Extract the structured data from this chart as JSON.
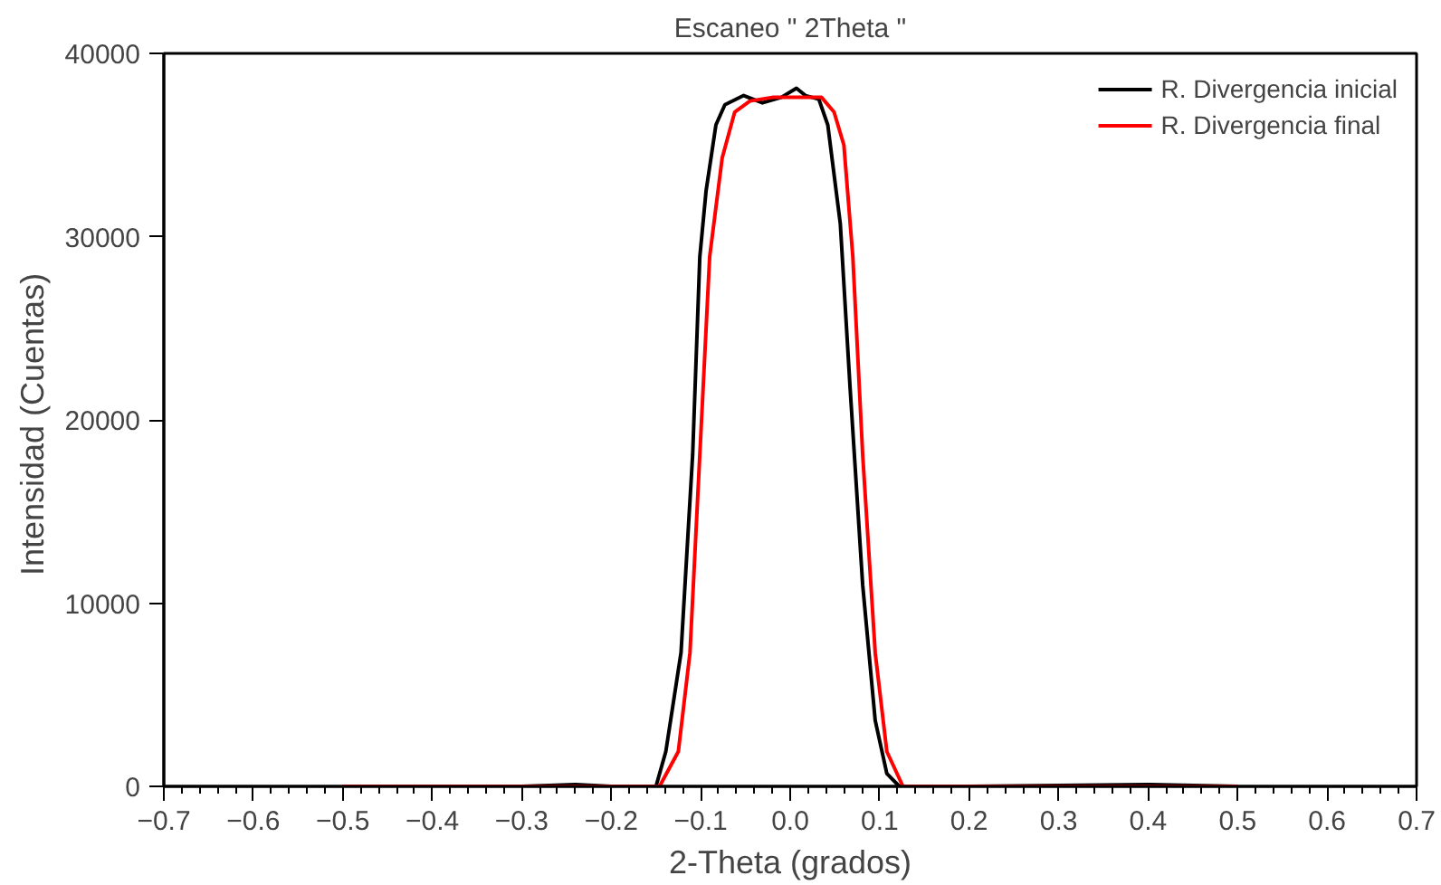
{
  "chart_data": {
    "type": "line",
    "title": "Escaneo \" 2Theta \"",
    "xlabel": "2-Theta (grados)",
    "ylabel": "Intensidad  (Cuentas)",
    "xlim": [
      -0.7,
      0.7
    ],
    "xticks": [
      -0.7,
      -0.6,
      -0.5,
      -0.4,
      -0.3,
      -0.2,
      -0.1,
      {
        "value": 0,
        "label": "0.0"
      },
      0.1,
      0.2,
      0.3,
      0.4,
      0.5,
      0.6,
      0.7
    ],
    "ylim": [
      0,
      40000
    ],
    "yticks": [
      0,
      10000,
      20000,
      30000,
      40000
    ],
    "grid": false,
    "legend": "top right",
    "marker": "none",
    "line_style": "solid",
    "series": [
      {
        "name": "R. Divergencia inicial",
        "color": "#000000",
        "x": [
          -0.5,
          -0.3,
          -0.24,
          -0.2,
          -0.15,
          -0.139,
          -0.122,
          -0.109,
          -0.101,
          -0.094,
          -0.083,
          -0.073,
          -0.052,
          -0.031,
          -0.01,
          0.007,
          0.017,
          0.032,
          0.042,
          0.056,
          0.067,
          0.081,
          0.095,
          0.108,
          0.122,
          0.2,
          0.4,
          0.5
        ],
        "values": [
          0,
          0,
          100,
          0,
          0,
          1900,
          7300,
          18100,
          28900,
          32500,
          36100,
          37200,
          37700,
          37300,
          37600,
          38100,
          37700,
          37500,
          36100,
          30700,
          21700,
          11000,
          3600,
          700,
          0,
          0,
          100,
          0
        ]
      },
      {
        "name": "R. Divergencia final",
        "color": "#ff0000",
        "x": [
          -0.5,
          -0.3,
          -0.146,
          -0.125,
          -0.112,
          -0.101,
          -0.09,
          -0.076,
          -0.062,
          -0.045,
          -0.02,
          0.0,
          0.02,
          0.035,
          0.049,
          0.06,
          0.07,
          0.081,
          0.095,
          0.108,
          0.126,
          0.2,
          0.5
        ],
        "values": [
          0,
          0,
          0,
          1900,
          7300,
          18100,
          28900,
          34300,
          36800,
          37400,
          37600,
          37600,
          37600,
          37600,
          36800,
          35000,
          28900,
          18100,
          7300,
          1900,
          0,
          0,
          0
        ]
      }
    ]
  }
}
